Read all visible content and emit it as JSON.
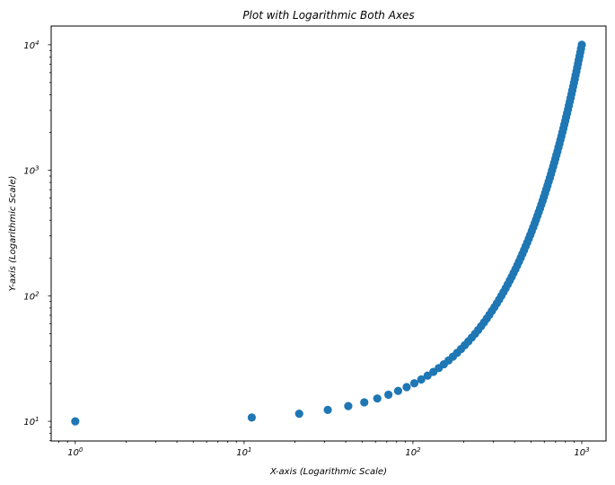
{
  "chart_data": {
    "type": "scatter",
    "title": "Plot with Logarithmic Both Axes",
    "xlabel": "X-axis (Logarithmic Scale)",
    "ylabel": "Y-axis (Logarithmic Scale)",
    "xscale": "log",
    "yscale": "log",
    "xlim": [
      0.72,
      1392
    ],
    "ylim": [
      6.97,
      14100
    ],
    "grid": false,
    "marker_color": "#1f77b4",
    "x_ticks": [
      {
        "value": 1,
        "base": "10",
        "exp": "0"
      },
      {
        "value": 10,
        "base": "10",
        "exp": "1"
      },
      {
        "value": 100,
        "base": "10",
        "exp": "2"
      },
      {
        "value": 1000,
        "base": "10",
        "exp": "3"
      }
    ],
    "y_ticks": [
      {
        "value": 10,
        "base": "10",
        "exp": "1"
      },
      {
        "value": 100,
        "base": "10",
        "exp": "2"
      },
      {
        "value": 1000,
        "base": "10",
        "exp": "3"
      },
      {
        "value": 10000,
        "base": "10",
        "exp": "4"
      }
    ],
    "x": [
      1,
      11.1,
      21.2,
      31.3,
      41.4,
      51.5,
      61.5,
      71.6,
      81.7,
      91.8,
      101.9,
      112.0,
      122.1,
      132.2,
      142.3,
      152.4,
      162.5,
      172.5,
      182.6,
      192.7,
      202.8,
      212.9,
      223.0,
      233.1,
      243.2,
      253.3,
      263.4,
      273.5,
      283.5,
      293.6,
      303.7,
      313.8,
      323.9,
      334.0,
      344.1,
      354.2,
      364.3,
      374.4,
      384.5,
      394.5,
      404.6,
      414.7,
      424.8,
      434.9,
      445.0,
      455.1,
      465.2,
      475.3,
      485.4,
      495.5,
      505.5,
      515.6,
      525.7,
      535.8,
      545.9,
      556.0,
      566.1,
      576.2,
      586.3,
      596.4,
      606.5,
      616.5,
      626.6,
      636.7,
      646.8,
      656.9,
      667.0,
      677.1,
      687.2,
      697.3,
      707.4,
      717.5,
      727.5,
      737.6,
      747.7,
      757.8,
      767.9,
      778.0,
      788.1,
      798.2,
      808.3,
      818.4,
      828.5,
      838.5,
      848.6,
      858.7,
      868.8,
      878.9,
      889.0,
      899.1,
      909.2,
      919.3,
      929.4,
      939.5,
      949.5,
      959.6,
      969.7,
      979.8,
      989.9,
      1000
    ],
    "y": [
      10,
      10.72,
      11.5,
      12.33,
      13.22,
      14.17,
      15.2,
      16.3,
      17.48,
      18.74,
      20.09,
      21.54,
      23.1,
      24.77,
      26.56,
      28.48,
      30.54,
      32.75,
      35.11,
      37.65,
      40.37,
      43.29,
      46.42,
      49.77,
      53.37,
      57.22,
      61.36,
      65.79,
      70.55,
      75.65,
      81.11,
      86.97,
      93.26,
      100,
      107.2,
      115.0,
      123.3,
      132.2,
      141.7,
      152.0,
      163.0,
      174.8,
      187.4,
      200.9,
      215.4,
      231.0,
      247.7,
      265.6,
      284.8,
      305.4,
      327.5,
      351.1,
      376.5,
      403.7,
      432.9,
      464.2,
      497.7,
      533.7,
      572.2,
      613.6,
      657.9,
      705.5,
      756.5,
      811.1,
      869.7,
      932.6,
      1000,
      1072,
      1150,
      1233,
      1322,
      1417,
      1520,
      1630,
      1748,
      1874,
      2009,
      2154,
      2310,
      2477,
      2656,
      2848,
      3054,
      3275,
      3511,
      3765,
      4037,
      4329,
      4642,
      4977,
      5337,
      5722,
      6136,
      6579,
      7055,
      7565,
      8111,
      8697,
      9326,
      10000
    ]
  }
}
